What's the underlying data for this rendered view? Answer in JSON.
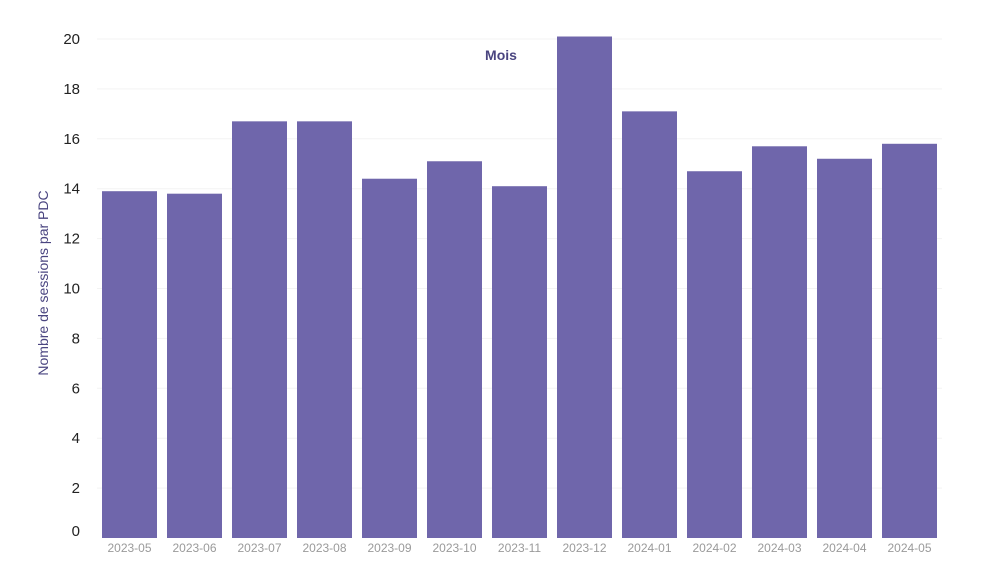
{
  "chart_data": {
    "type": "bar",
    "categories": [
      "2023-05",
      "2023-06",
      "2023-07",
      "2023-08",
      "2023-09",
      "2023-10",
      "2023-11",
      "2023-12",
      "2024-01",
      "2024-02",
      "2024-03",
      "2024-04",
      "2024-05"
    ],
    "values": [
      13.9,
      13.8,
      16.7,
      16.7,
      14.4,
      15.1,
      14.1,
      20.1,
      17.1,
      14.7,
      15.7,
      15.2,
      15.8
    ],
    "xlabel": "Mois",
    "ylabel": "Nombre de sessions par PDC",
    "ylim": [
      0,
      20
    ],
    "yticks": [
      0,
      2,
      4,
      6,
      8,
      10,
      12,
      14,
      16,
      18,
      20
    ],
    "grid": true,
    "colors": {
      "bar": "#6f66ab",
      "axis_label": "#4a4580",
      "y_tick": "#222222",
      "x_tick": "#9a9a9a"
    }
  }
}
